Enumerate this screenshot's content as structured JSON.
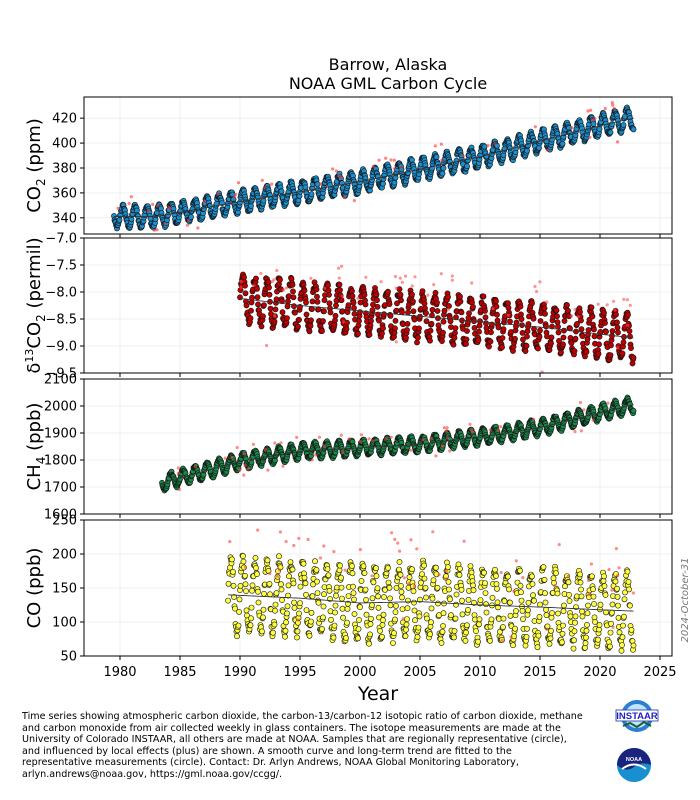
{
  "figure": {
    "title_line1": "Barrow, Alaska",
    "title_line2": "NOAA GML Carbon Cycle",
    "xlabel": "Year",
    "date_stamp": "2024-October-31",
    "caption": "Time series showing atmospheric carbon dioxide, the carbon-13/carbon-12 isotopic ratio of carbon dioxide, methane\nand carbon monoxide from air collected weekly in glass containers.  The isotope measurements are made at the\nUniversity of Colorado INSTAAR, all others are made at NOAA.  Samples that are regionally representative (circle),\nand influenced by local effects (plus) are shown.  A smooth curve and long-term trend are fitted to the\nrepresentative measurements (circle).  Contact:  Dr. Arlyn Andrews, NOAA Global Monitoring Laboratory,\narlyn.andrews@noaa.gov, https://gml.noaa.gov/ccgg/.",
    "logo_instaar": "INSTAAR",
    "logo_noaa": "NOAA"
  },
  "chart_data": [
    {
      "type": "scatter",
      "panel": "co2",
      "ylabel_main": "CO",
      "ylabel_sub": "2",
      "ylabel_unit": " (ppm)",
      "xlim": [
        1977,
        2026
      ],
      "ylim": [
        327,
        437
      ],
      "yticks": [
        340,
        360,
        380,
        400,
        420
      ],
      "xticks": [
        1980,
        1985,
        1990,
        1995,
        2000,
        2005,
        2010,
        2015,
        2020,
        2025
      ],
      "grid": true,
      "marker_color": "#1a8fd0",
      "outlier_color": "#ff3030",
      "trend": {
        "x": [
          1983,
          1990,
          2000,
          2010,
          2020,
          2022.8
        ],
        "y": [
          341,
          353,
          369,
          389,
          414,
          420
        ]
      },
      "seasonal_amplitude": 8.5,
      "x_start": 1979.5,
      "x_end": 2022.8
    },
    {
      "type": "scatter",
      "panel": "d13c",
      "ylabel_pre": "δ",
      "ylabel_sup": "13",
      "ylabel_main": "CO",
      "ylabel_sub": "2",
      "ylabel_unit": " (permil)",
      "xlim": [
        1977,
        2026
      ],
      "ylim": [
        -9.5,
        -7.0
      ],
      "yticks": [
        -9.5,
        -9.0,
        -8.5,
        -8.0,
        -7.5,
        -7.0
      ],
      "ytick_labels": [
        "−9.5",
        "−9.0",
        "−8.5",
        "−8.0",
        "−7.5",
        "−7.0"
      ],
      "grid": true,
      "marker_color": "#c00000",
      "outlier_color": "#ff5050",
      "trend": {
        "x": [
          1990,
          1995,
          2000,
          2005,
          2010,
          2015,
          2020,
          2022.8
        ],
        "y": [
          -8.12,
          -8.25,
          -8.35,
          -8.45,
          -8.55,
          -8.65,
          -8.78,
          -8.85
        ]
      },
      "seasonal_amplitude": 0.42,
      "x_start": 1990.0,
      "x_end": 2022.8
    },
    {
      "type": "scatter",
      "panel": "ch4",
      "ylabel_main": "CH",
      "ylabel_sub": "4",
      "ylabel_unit": " (ppb)",
      "xlim": [
        1977,
        2026
      ],
      "ylim": [
        1600,
        2100
      ],
      "yticks": [
        1600,
        1700,
        1800,
        1900,
        2000,
        2100
      ],
      "grid": true,
      "marker_color": "#1a8a4a",
      "outlier_color": "#ff4040",
      "trend": {
        "x": [
          1983.5,
          1990,
          1995,
          2000,
          2005,
          2010,
          2015,
          2020,
          2022.8
        ],
        "y": [
          1715,
          1795,
          1832,
          1845,
          1858,
          1885,
          1920,
          1975,
          2005
        ]
      },
      "seasonal_amplitude": 28,
      "x_start": 1983.5,
      "x_end": 2022.8
    },
    {
      "type": "scatter",
      "panel": "co",
      "ylabel_main": "CO",
      "ylabel_sub": "",
      "ylabel_unit": " (ppb)",
      "xlim": [
        1977,
        2026
      ],
      "ylim": [
        50,
        250
      ],
      "yticks": [
        50,
        100,
        150,
        200,
        250
      ],
      "grid": true,
      "marker_color": "#ffff40",
      "outlier_color": "#ff4040",
      "trend": {
        "x": [
          1989,
          1995,
          2000,
          2005,
          2010,
          2015,
          2020,
          2022.8
        ],
        "y": [
          140,
          135,
          128,
          130,
          125,
          122,
          118,
          116
        ]
      },
      "seasonal_amplitude": 52,
      "x_start": 1989.0,
      "x_end": 2022.8
    }
  ]
}
